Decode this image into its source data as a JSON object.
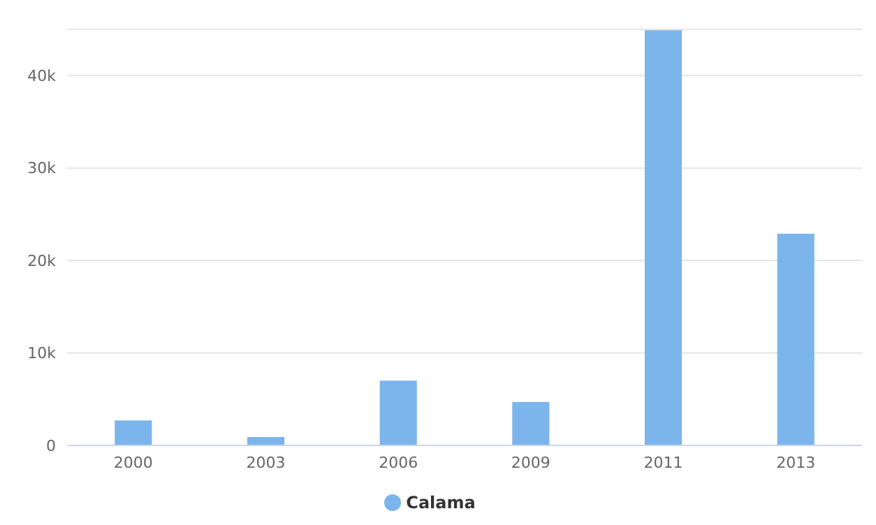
{
  "chart_data": {
    "type": "bar",
    "categories": [
      "2000",
      "2003",
      "2006",
      "2009",
      "2011",
      "2013"
    ],
    "series": [
      {
        "name": "Calama",
        "color": "#7cb5ec",
        "values": [
          2700,
          900,
          7000,
          4700,
          44900,
          22900
        ]
      }
    ],
    "ylim": [
      0,
      45000
    ],
    "yticks": [
      {
        "value": 0,
        "label": "0"
      },
      {
        "value": 10000,
        "label": "10k"
      },
      {
        "value": 20000,
        "label": "20k"
      },
      {
        "value": 30000,
        "label": "30k"
      },
      {
        "value": 40000,
        "label": "40k"
      }
    ],
    "grid": "y",
    "legend": "bottom"
  }
}
